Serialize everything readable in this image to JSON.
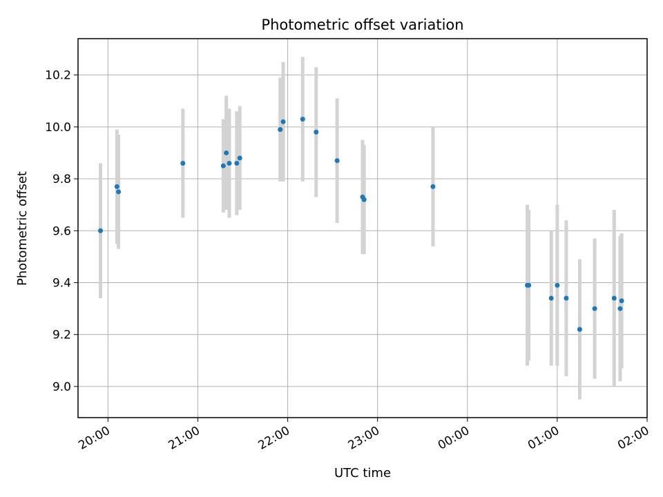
{
  "chart_data": {
    "type": "scatter",
    "title": "Photometric offset variation",
    "xlabel": "UTC time",
    "ylabel": "Photometric offset",
    "grid": true,
    "legend": "none",
    "x_tick_labels": [
      "20:00",
      "21:00",
      "22:00",
      "23:00",
      "00:00",
      "01:00",
      "02:00"
    ],
    "y_tick_labels": [
      "9.0",
      "9.2",
      "9.4",
      "9.6",
      "9.8",
      "10.0",
      "10.2"
    ],
    "xlim": [
      "19:40",
      "02:00"
    ],
    "ylim": [
      8.88,
      10.34
    ],
    "series": [
      {
        "marker_color": "#1f77b4",
        "errorbar_color": "#d3d3d3",
        "points": [
          {
            "x": "19:55",
            "y": 9.6,
            "err": 0.26
          },
          {
            "x": "20:06",
            "y": 9.77,
            "err": 0.22
          },
          {
            "x": "20:07",
            "y": 9.75,
            "err": 0.22
          },
          {
            "x": "20:50",
            "y": 9.86,
            "err": 0.21
          },
          {
            "x": "21:17",
            "y": 9.85,
            "err": 0.18
          },
          {
            "x": "21:19",
            "y": 9.9,
            "err": 0.22
          },
          {
            "x": "21:21",
            "y": 9.86,
            "err": 0.21
          },
          {
            "x": "21:26",
            "y": 9.86,
            "err": 0.2
          },
          {
            "x": "21:28",
            "y": 9.88,
            "err": 0.2
          },
          {
            "x": "21:55",
            "y": 9.99,
            "err": 0.2
          },
          {
            "x": "21:57",
            "y": 10.02,
            "err": 0.23
          },
          {
            "x": "22:10",
            "y": 10.03,
            "err": 0.24
          },
          {
            "x": "22:19",
            "y": 9.98,
            "err": 0.25
          },
          {
            "x": "22:33",
            "y": 9.87,
            "err": 0.24
          },
          {
            "x": "22:50",
            "y": 9.73,
            "err": 0.22
          },
          {
            "x": "22:51",
            "y": 9.72,
            "err": 0.21
          },
          {
            "x": "23:37",
            "y": 9.77,
            "err": 0.23
          },
          {
            "x": "00:40",
            "y": 9.39,
            "err": 0.31
          },
          {
            "x": "00:41",
            "y": 9.39,
            "err": 0.29
          },
          {
            "x": "00:56",
            "y": 9.34,
            "err": 0.26
          },
          {
            "x": "01:00",
            "y": 9.39,
            "err": 0.31
          },
          {
            "x": "01:06",
            "y": 9.34,
            "err": 0.3
          },
          {
            "x": "01:15",
            "y": 9.22,
            "err": 0.27
          },
          {
            "x": "01:25",
            "y": 9.3,
            "err": 0.27
          },
          {
            "x": "01:38",
            "y": 9.34,
            "err": 0.34
          },
          {
            "x": "01:42",
            "y": 9.3,
            "err": 0.28
          },
          {
            "x": "01:43",
            "y": 9.33,
            "err": 0.26
          }
        ]
      }
    ]
  }
}
